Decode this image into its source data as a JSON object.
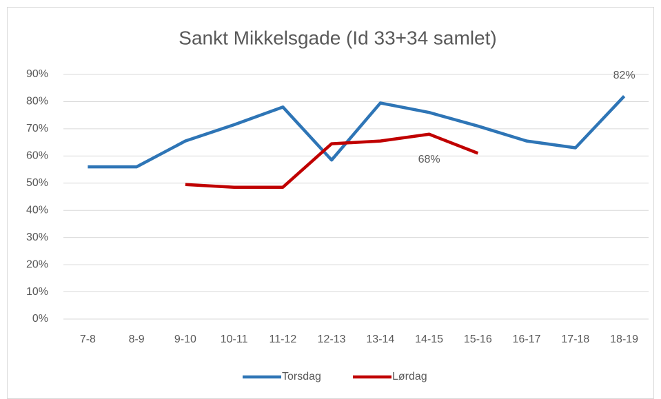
{
  "chart_data": {
    "type": "line",
    "title": "Sankt Mikkelsgade (Id 33+34 samlet)",
    "categories": [
      "7-8",
      "8-9",
      "9-10",
      "10-11",
      "11-12",
      "12-13",
      "13-14",
      "14-15",
      "15-16",
      "16-17",
      "17-18",
      "18-19"
    ],
    "series": [
      {
        "name": "Torsdag",
        "color": "#2e75b6",
        "values": [
          56,
          56,
          65.5,
          71.5,
          78,
          58.5,
          79.5,
          76,
          71,
          65.5,
          63,
          82
        ],
        "value_labels": [
          null,
          null,
          null,
          null,
          null,
          null,
          null,
          null,
          null,
          null,
          null,
          "82%"
        ]
      },
      {
        "name": "Lørdag",
        "color": "#c00000",
        "values": [
          null,
          null,
          49.5,
          48.5,
          48.5,
          64.5,
          65.5,
          68,
          61,
          null,
          null,
          null
        ],
        "value_labels": [
          null,
          null,
          null,
          null,
          null,
          null,
          null,
          "68%",
          null,
          null,
          null,
          null
        ]
      }
    ],
    "ylim": [
      0,
      90
    ],
    "yticks": [
      {
        "value": 0,
        "label": "0%"
      },
      {
        "value": 10,
        "label": "10%"
      },
      {
        "value": 20,
        "label": "20%"
      },
      {
        "value": 30,
        "label": "30%"
      },
      {
        "value": 40,
        "label": "40%"
      },
      {
        "value": 50,
        "label": "50%"
      },
      {
        "value": 60,
        "label": "60%"
      },
      {
        "value": 70,
        "label": "70%"
      },
      {
        "value": 80,
        "label": "80%"
      },
      {
        "value": 90,
        "label": "90%"
      }
    ],
    "grid": true,
    "legend": "bottom"
  }
}
